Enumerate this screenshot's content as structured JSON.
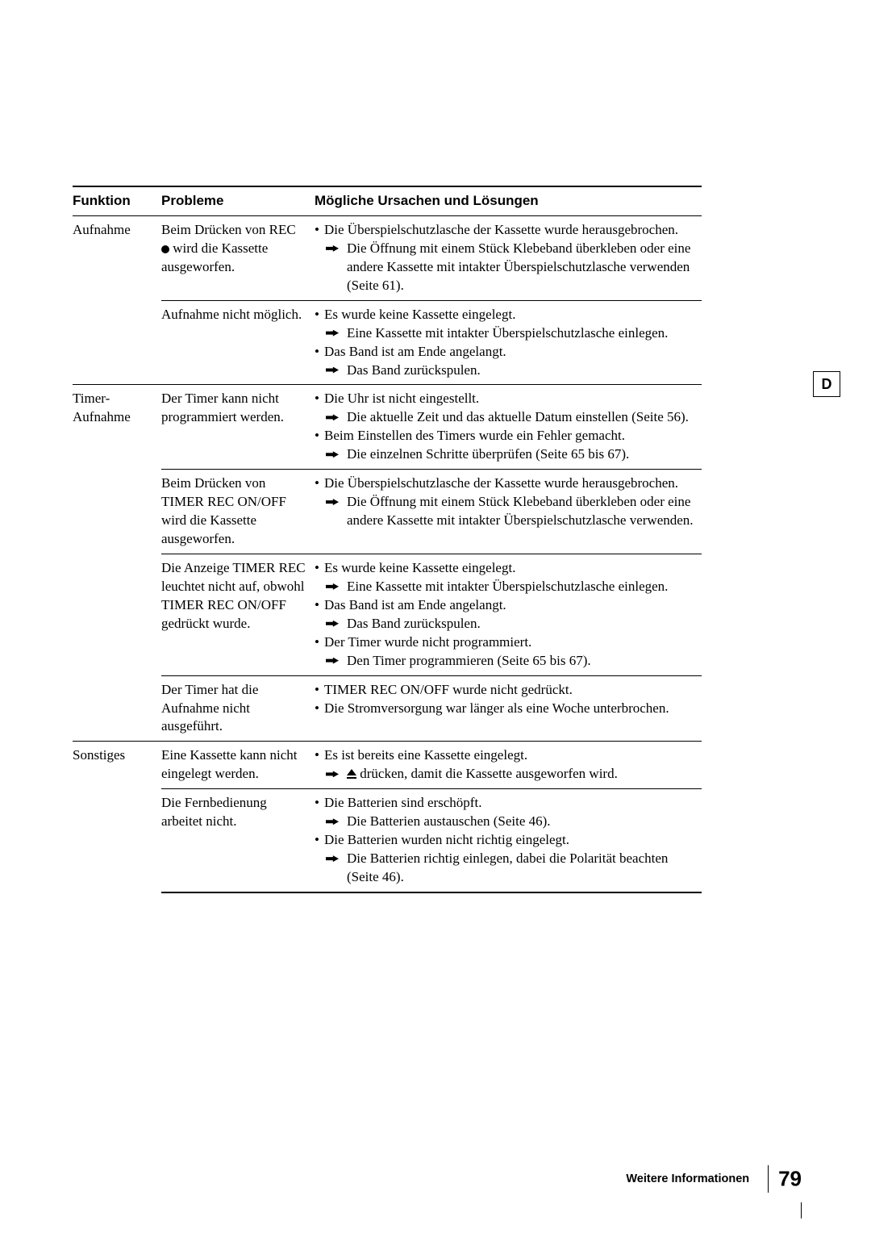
{
  "headers": {
    "c1": "Funktion",
    "c2": "Probleme",
    "c3": "Mögliche Ursachen und Lösungen"
  },
  "sideTab": "D",
  "footer": {
    "label": "Weitere Informationen",
    "page": "79"
  },
  "sec1": {
    "func": "Aufnahme",
    "r1": {
      "prob_a": "Beim Drücken von REC ",
      "prob_b": " wird die Kassette ausgeworfen.",
      "c1": "Die Überspielschutzlasche der Kassette wurde herausgebrochen.",
      "a1": "Die Öffnung mit einem Stück Klebeband überkleben oder eine andere Kassette mit intakter Überspielschutzlasche verwenden (Seite 61)."
    },
    "r2": {
      "prob": "Aufnahme nicht möglich.",
      "c1": "Es wurde keine Kassette eingelegt.",
      "a1": "Eine Kassette mit intakter Überspielschutzlasche einlegen.",
      "c2": "Das Band ist am Ende angelangt.",
      "a2": "Das Band zurückspulen."
    }
  },
  "sec2": {
    "func": "Timer-Aufnahme",
    "r1": {
      "prob": "Der Timer kann nicht programmiert werden.",
      "c1": "Die Uhr ist nicht eingestellt.",
      "a1": "Die aktuelle Zeit und das aktuelle Datum einstellen (Seite 56).",
      "c2": "Beim Einstellen des Timers wurde ein Fehler gemacht.",
      "a2": "Die einzelnen Schritte überprüfen (Seite 65 bis 67)."
    },
    "r2": {
      "prob": "Beim Drücken von TIMER REC ON/OFF wird die Kassette ausgeworfen.",
      "c1": "Die Überspielschutzlasche der Kassette wurde herausgebrochen.",
      "a1": "Die Öffnung mit einem Stück Klebeband überkleben oder eine andere Kassette mit intakter Überspielschutzlasche verwenden."
    },
    "r3": {
      "prob": "Die Anzeige TIMER REC leuchtet nicht auf, obwohl TIMER REC ON/OFF gedrückt wurde.",
      "c1": "Es wurde keine Kassette eingelegt.",
      "a1": "Eine Kassette mit intakter Überspielschutzlasche einlegen.",
      "c2": "Das Band ist am Ende angelangt.",
      "a2": "Das Band zurückspulen.",
      "c3": "Der Timer wurde nicht programmiert.",
      "a3": "Den Timer programmieren (Seite 65 bis 67)."
    },
    "r4": {
      "prob": "Der Timer hat die Aufnahme nicht ausgeführt.",
      "c1": "TIMER REC ON/OFF wurde nicht gedrückt.",
      "c2": "Die Stromversorgung war länger als eine Woche unterbrochen."
    }
  },
  "sec3": {
    "func": "Sonstiges",
    "r1": {
      "prob": "Eine Kassette kann nicht eingelegt werden.",
      "c1": "Es ist bereits eine Kassette eingelegt.",
      "a1": " drücken, damit die Kassette ausgeworfen wird."
    },
    "r2": {
      "prob": "Die Fernbedienung arbeitet nicht.",
      "c1": "Die Batterien sind erschöpft.",
      "a1": "Die Batterien austauschen (Seite 46).",
      "c2": "Die Batterien wurden nicht richtig eingelegt.",
      "a2": "Die Batterien richtig einlegen, dabei die Polarität beachten (Seite 46)."
    }
  }
}
